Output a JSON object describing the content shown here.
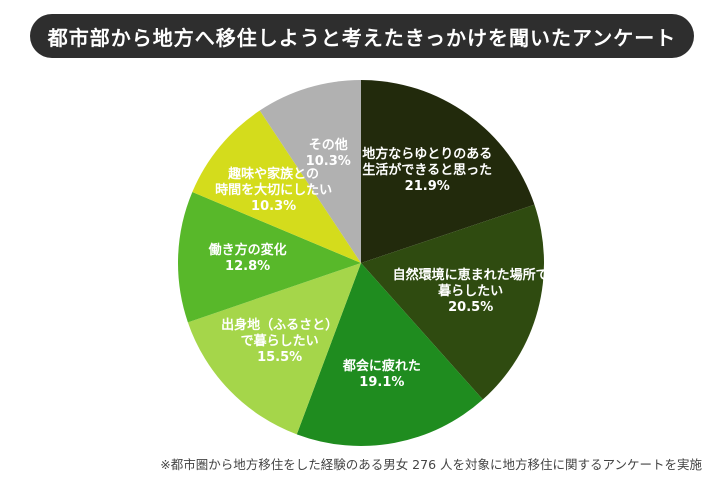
{
  "chart_data": {
    "type": "pie",
    "title": "都市部から地方へ移住しようと考えたきっかけを聞いたアンケート",
    "note": "※都市圏から地方移住をした経験のある男女 276 人を対象に地方移住に関するアンケートを実施",
    "categories": [
      "地方ならゆとりのある\n生活ができると思った",
      "自然環境に恵まれた場所で\n暮らしたい",
      "都会に疲れた",
      "出身地（ふるさと）\nで暮らしたい",
      "働き方の変化",
      "趣味や家族との\n時間を大切にしたい",
      "その他"
    ],
    "values": [
      21.9,
      20.5,
      19.1,
      15.5,
      12.8,
      10.3,
      10.3
    ],
    "value_labels": [
      "21.9%",
      "20.5%",
      "19.1%",
      "15.5%",
      "12.8%",
      "10.3%",
      "10.3%"
    ],
    "colors": [
      "#222a0c",
      "#2f4b10",
      "#1f8c1f",
      "#a5d64a",
      "#58b82a",
      "#d4dc1c",
      "#b1b1b1"
    ]
  }
}
